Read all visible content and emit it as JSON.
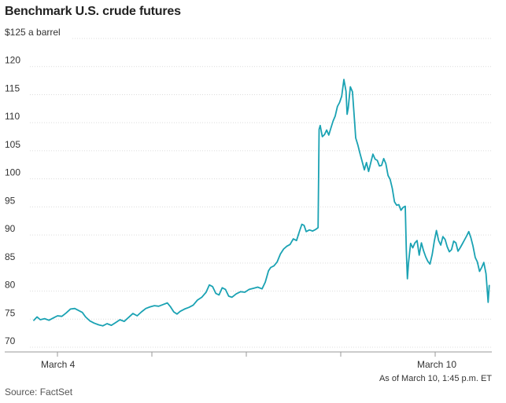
{
  "chart_data": {
    "type": "line",
    "title": "Benchmark U.S. crude futures",
    "ylabel": "",
    "y_unit_label": "$125 a barrel",
    "ylim": [
      70,
      125
    ],
    "y_ticks": [
      {
        "value": 125,
        "label": "$125 a barrel"
      },
      {
        "value": 120,
        "label": "120"
      },
      {
        "value": 115,
        "label": "115"
      },
      {
        "value": 110,
        "label": "110"
      },
      {
        "value": 105,
        "label": "105"
      },
      {
        "value": 100,
        "label": "100"
      },
      {
        "value": 95,
        "label": "95"
      },
      {
        "value": 90,
        "label": "90"
      },
      {
        "value": 85,
        "label": "85"
      },
      {
        "value": 80,
        "label": "80"
      },
      {
        "value": 75,
        "label": "75"
      },
      {
        "value": 70,
        "label": "70"
      }
    ],
    "x_label_ticks": [
      "March 4",
      "March 10"
    ],
    "grid": true,
    "line_color": "#1aa2b3",
    "series": [
      {
        "points": [
          [
            0,
            74.8
          ],
          [
            3,
            75.4
          ],
          [
            6,
            74.9
          ],
          [
            10,
            75.1
          ],
          [
            14,
            74.8
          ],
          [
            18,
            75.2
          ],
          [
            22,
            75.6
          ],
          [
            26,
            75.5
          ],
          [
            30,
            76.1
          ],
          [
            34,
            76.8
          ],
          [
            38,
            76.9
          ],
          [
            42,
            76.5
          ],
          [
            45,
            76.2
          ],
          [
            48,
            75.4
          ],
          [
            52,
            74.7
          ],
          [
            56,
            74.3
          ],
          [
            60,
            74.0
          ],
          [
            64,
            73.8
          ],
          [
            68,
            74.2
          ],
          [
            72,
            73.9
          ],
          [
            76,
            74.4
          ],
          [
            80,
            74.9
          ],
          [
            84,
            74.6
          ],
          [
            88,
            75.3
          ],
          [
            92,
            76.0
          ],
          [
            96,
            75.6
          ],
          [
            100,
            76.3
          ],
          [
            104,
            76.9
          ],
          [
            108,
            77.2
          ],
          [
            112,
            77.4
          ],
          [
            116,
            77.3
          ],
          [
            120,
            77.6
          ],
          [
            124,
            77.9
          ],
          [
            127,
            77.2
          ],
          [
            130,
            76.3
          ],
          [
            133,
            75.9
          ],
          [
            136,
            76.4
          ],
          [
            140,
            76.8
          ],
          [
            144,
            77.1
          ],
          [
            148,
            77.5
          ],
          [
            152,
            78.4
          ],
          [
            156,
            78.9
          ],
          [
            160,
            79.8
          ],
          [
            163,
            81.1
          ],
          [
            166,
            80.8
          ],
          [
            169,
            79.6
          ],
          [
            172,
            79.3
          ],
          [
            175,
            80.6
          ],
          [
            178,
            80.3
          ],
          [
            181,
            79.1
          ],
          [
            184,
            78.9
          ],
          [
            188,
            79.5
          ],
          [
            192,
            79.9
          ],
          [
            196,
            79.8
          ],
          [
            200,
            80.3
          ],
          [
            204,
            80.5
          ],
          [
            208,
            80.7
          ],
          [
            212,
            80.4
          ],
          [
            215,
            81.6
          ],
          [
            218,
            83.6
          ],
          [
            220,
            84.2
          ],
          [
            223,
            84.5
          ],
          [
            226,
            85.2
          ],
          [
            229,
            86.6
          ],
          [
            232,
            87.5
          ],
          [
            235,
            88.0
          ],
          [
            238,
            88.3
          ],
          [
            241,
            89.3
          ],
          [
            244,
            89.0
          ],
          [
            247,
            90.8
          ],
          [
            249,
            91.9
          ],
          [
            251,
            91.7
          ],
          [
            253,
            90.6
          ],
          [
            256,
            90.9
          ],
          [
            259,
            90.7
          ],
          [
            262,
            91.0
          ],
          [
            264,
            91.3
          ],
          [
            265,
            108.8
          ],
          [
            266,
            109.5
          ],
          [
            268,
            107.5
          ],
          [
            270,
            107.9
          ],
          [
            272,
            108.7
          ],
          [
            274,
            107.8
          ],
          [
            276,
            109.1
          ],
          [
            278,
            110.3
          ],
          [
            280,
            111.2
          ],
          [
            282,
            112.9
          ],
          [
            284,
            113.6
          ],
          [
            286,
            114.7
          ],
          [
            288,
            117.7
          ],
          [
            290,
            115.6
          ],
          [
            291,
            111.5
          ],
          [
            292,
            112.6
          ],
          [
            294,
            116.4
          ],
          [
            296,
            115.5
          ],
          [
            298,
            110.0
          ],
          [
            299,
            107.3
          ],
          [
            301,
            106.0
          ],
          [
            303,
            104.5
          ],
          [
            305,
            103.1
          ],
          [
            307,
            101.6
          ],
          [
            309,
            102.9
          ],
          [
            311,
            101.3
          ],
          [
            313,
            102.9
          ],
          [
            315,
            104.4
          ],
          [
            317,
            103.5
          ],
          [
            319,
            103.3
          ],
          [
            321,
            102.3
          ],
          [
            323,
            102.4
          ],
          [
            325,
            103.6
          ],
          [
            327,
            102.7
          ],
          [
            329,
            100.6
          ],
          [
            331,
            99.9
          ],
          [
            333,
            98.3
          ],
          [
            335,
            95.9
          ],
          [
            337,
            95.3
          ],
          [
            339,
            95.4
          ],
          [
            341,
            94.4
          ],
          [
            343,
            94.9
          ],
          [
            345,
            95.1
          ],
          [
            346,
            87.4
          ],
          [
            347,
            82.2
          ],
          [
            348,
            85.0
          ],
          [
            350,
            88.5
          ],
          [
            352,
            87.7
          ],
          [
            354,
            88.6
          ],
          [
            356,
            89.0
          ],
          [
            358,
            86.4
          ],
          [
            360,
            88.6
          ],
          [
            362,
            87.2
          ],
          [
            364,
            86.1
          ],
          [
            366,
            85.3
          ],
          [
            368,
            84.8
          ],
          [
            370,
            86.5
          ],
          [
            372,
            88.9
          ],
          [
            374,
            90.8
          ],
          [
            376,
            89.0
          ],
          [
            378,
            88.2
          ],
          [
            380,
            89.7
          ],
          [
            382,
            89.2
          ],
          [
            384,
            87.9
          ],
          [
            386,
            87.0
          ],
          [
            388,
            87.4
          ],
          [
            390,
            88.9
          ],
          [
            392,
            88.6
          ],
          [
            394,
            87.1
          ],
          [
            396,
            87.7
          ],
          [
            398,
            88.4
          ],
          [
            400,
            89.1
          ],
          [
            402,
            89.8
          ],
          [
            404,
            90.6
          ],
          [
            406,
            89.5
          ],
          [
            408,
            88.0
          ],
          [
            410,
            86.0
          ],
          [
            412,
            85.2
          ],
          [
            414,
            83.5
          ],
          [
            416,
            84.2
          ],
          [
            418,
            85.1
          ],
          [
            420,
            83.1
          ],
          [
            422,
            78.0
          ],
          [
            423,
            81.0
          ]
        ]
      }
    ]
  },
  "note": "As of March 10, 1:45 p.m. ET",
  "source": "Source: FactSet"
}
